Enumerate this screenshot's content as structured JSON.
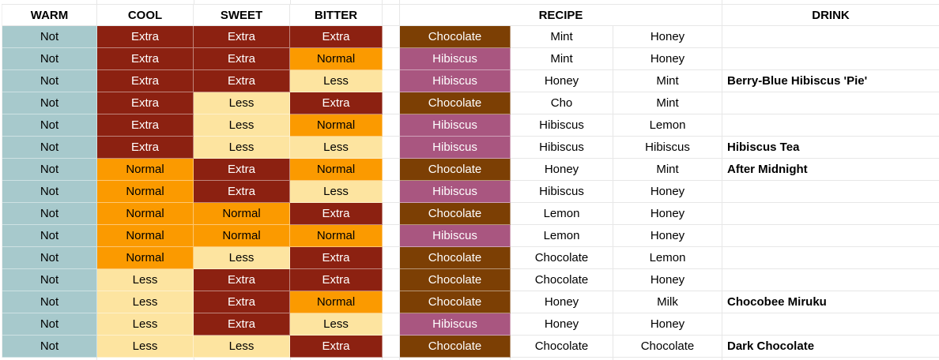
{
  "headers": {
    "warm": "WARM",
    "cool": "COOL",
    "sweet": "SWEET",
    "bitter": "BITTER",
    "recipe": "RECIPE",
    "drink": "DRINK"
  },
  "colors": {
    "fills": {
      "Not": "#A7C9CC",
      "Extra": "#8C2111",
      "Normal": "#FB9A00",
      "Less": "#FDE4A0",
      "Chocolate": "#7C3F04",
      "Hibiscus": "#A95680"
    },
    "dark_fills": [
      "Extra",
      "Chocolate",
      "Hibiscus"
    ],
    "gridline": "#E7E7E7",
    "header_text": "#000000",
    "drink_text": "#000000"
  },
  "rows": [
    {
      "warm": "Not",
      "cool": "Extra",
      "sweet": "Extra",
      "bitter": "Extra",
      "base": "Chocolate",
      "ing1": "Mint",
      "ing2": "Honey",
      "drink": ""
    },
    {
      "warm": "Not",
      "cool": "Extra",
      "sweet": "Extra",
      "bitter": "Normal",
      "base": "Hibiscus",
      "ing1": "Mint",
      "ing2": "Honey",
      "drink": ""
    },
    {
      "warm": "Not",
      "cool": "Extra",
      "sweet": "Extra",
      "bitter": "Less",
      "base": "Hibiscus",
      "ing1": "Honey",
      "ing2": "Mint",
      "drink": "Berry-Blue Hibiscus 'Pie'"
    },
    {
      "warm": "Not",
      "cool": "Extra",
      "sweet": "Less",
      "bitter": "Extra",
      "base": "Chocolate",
      "ing1": "Cho",
      "ing2": "Mint",
      "drink": ""
    },
    {
      "warm": "Not",
      "cool": "Extra",
      "sweet": "Less",
      "bitter": "Normal",
      "base": "Hibiscus",
      "ing1": "Hibiscus",
      "ing2": "Lemon",
      "drink": ""
    },
    {
      "warm": "Not",
      "cool": "Extra",
      "sweet": "Less",
      "bitter": "Less",
      "base": "Hibiscus",
      "ing1": "Hibiscus",
      "ing2": "Hibiscus",
      "drink": "Hibiscus Tea"
    },
    {
      "warm": "Not",
      "cool": "Normal",
      "sweet": "Extra",
      "bitter": "Normal",
      "base": "Chocolate",
      "ing1": "Honey",
      "ing2": "Mint",
      "drink": "After Midnight"
    },
    {
      "warm": "Not",
      "cool": "Normal",
      "sweet": "Extra",
      "bitter": "Less",
      "base": "Hibiscus",
      "ing1": "Hibiscus",
      "ing2": "Honey",
      "drink": ""
    },
    {
      "warm": "Not",
      "cool": "Normal",
      "sweet": "Normal",
      "bitter": "Extra",
      "base": "Chocolate",
      "ing1": "Lemon",
      "ing2": "Honey",
      "drink": ""
    },
    {
      "warm": "Not",
      "cool": "Normal",
      "sweet": "Normal",
      "bitter": "Normal",
      "base": "Hibiscus",
      "ing1": "Lemon",
      "ing2": "Honey",
      "drink": ""
    },
    {
      "warm": "Not",
      "cool": "Normal",
      "sweet": "Less",
      "bitter": "Extra",
      "base": "Chocolate",
      "ing1": "Chocolate",
      "ing2": "Lemon",
      "drink": ""
    },
    {
      "warm": "Not",
      "cool": "Less",
      "sweet": "Extra",
      "bitter": "Extra",
      "base": "Chocolate",
      "ing1": "Chocolate",
      "ing2": "Honey",
      "drink": ""
    },
    {
      "warm": "Not",
      "cool": "Less",
      "sweet": "Extra",
      "bitter": "Normal",
      "base": "Chocolate",
      "ing1": "Honey",
      "ing2": "Milk",
      "drink": "Chocobee Miruku"
    },
    {
      "warm": "Not",
      "cool": "Less",
      "sweet": "Extra",
      "bitter": "Less",
      "base": "Hibiscus",
      "ing1": "Honey",
      "ing2": "Honey",
      "drink": ""
    },
    {
      "warm": "Not",
      "cool": "Less",
      "sweet": "Less",
      "bitter": "Extra",
      "base": "Chocolate",
      "ing1": "Chocolate",
      "ing2": "Chocolate",
      "drink": "Dark Chocolate"
    }
  ]
}
